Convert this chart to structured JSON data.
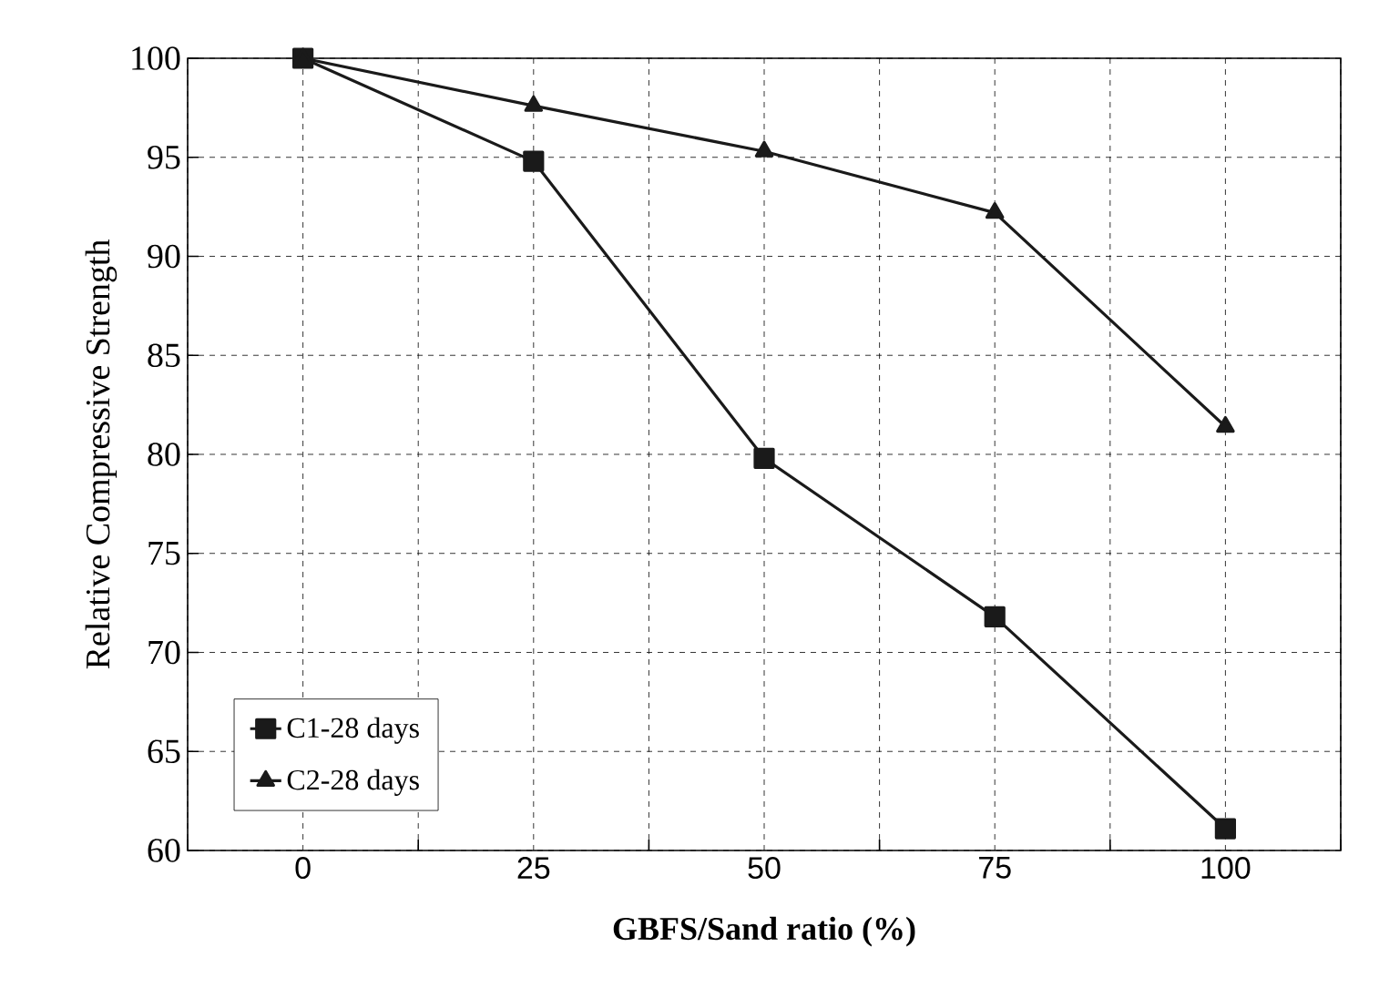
{
  "chart_data": {
    "type": "line",
    "xlabel": "GBFS/Sand ratio (%)",
    "ylabel": "Relative Compressive Strength",
    "categories": [
      "0",
      "25",
      "50",
      "75",
      "100"
    ],
    "series": [
      {
        "name": "C1-28 days",
        "color": "#1a1a1a",
        "values": [
          100,
          94.8,
          79.8,
          71.8,
          61.1
        ],
        "marker": "square"
      },
      {
        "name": "C2-28 days",
        "color": "#1a1a1a",
        "values": [
          100,
          97.6,
          95.3,
          92.2,
          81.4
        ],
        "marker": "triangle"
      }
    ],
    "ylim": [
      60,
      100
    ],
    "yticks": [
      60,
      65,
      70,
      75,
      80,
      85,
      90,
      95,
      100
    ],
    "grid": true,
    "legend": "bottom left",
    "line_style": "solid"
  }
}
